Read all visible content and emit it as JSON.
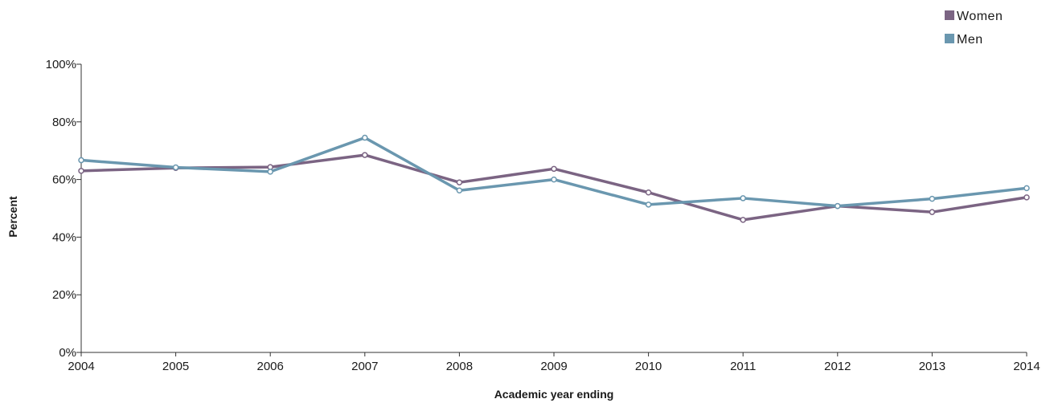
{
  "chart_data": {
    "type": "line",
    "xlabel": "Academic year ending",
    "ylabel": "Percent",
    "x": [
      "2004",
      "2005",
      "2006",
      "2007",
      "2008",
      "2009",
      "2010",
      "2011",
      "2012",
      "2013",
      "2014"
    ],
    "ylim": [
      0,
      100
    ],
    "yticks": [
      "0%",
      "20%",
      "40%",
      "60%",
      "80%",
      "100%"
    ],
    "grid": false,
    "legend_position": "top-right",
    "series": [
      {
        "name": "Women",
        "color": "#7b6483",
        "values": [
          63,
          64,
          64.3,
          68.5,
          59,
          63.7,
          55.5,
          46,
          50.8,
          48.7,
          53.8
        ]
      },
      {
        "name": "Men",
        "color": "#6a97af",
        "values": [
          66.7,
          64.2,
          62.7,
          74.5,
          56.2,
          60,
          51.3,
          53.5,
          50.8,
          53.3,
          57
        ]
      }
    ]
  }
}
